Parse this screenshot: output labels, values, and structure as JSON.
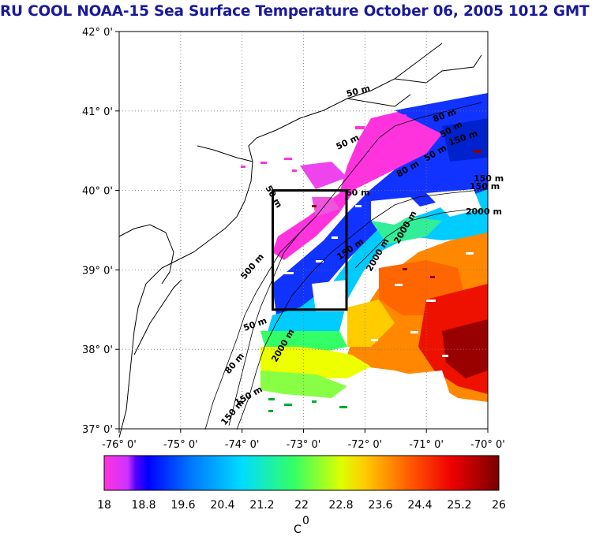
{
  "title": "RU COOL  NOAA-15 Sea Surface Temperature October 06, 2005 1012 GMT",
  "map": {
    "lat_labels": [
      "42° 0'",
      "41° 0'",
      "40° 0'",
      "39° 0'",
      "38° 0'",
      "37° 0'"
    ],
    "lon_labels": [
      "-76° 0'",
      "-75° 0'",
      "-74° 0'",
      "-73° 0'",
      "-72° 0'",
      "-71° 0'",
      "-70° 0'"
    ],
    "isobaths": [
      "50 m",
      "50 m",
      "50 m",
      "60 m",
      "150 m",
      "150 m",
      "50 m",
      "50 m",
      "80 m",
      "80 m",
      "150 m",
      "2000 m",
      "2000 m",
      "500 m",
      "2000 m",
      "50 m",
      "150 m",
      "2000 m",
      "150 m",
      "80 m",
      "150 m"
    ],
    "box": {
      "lon_range": [
        -73.5,
        -72.3
      ],
      "lat_range": [
        38.5,
        40.0
      ]
    }
  },
  "colorbar": {
    "ticks": [
      "18",
      "18.8",
      "19.6",
      "20.4",
      "21.2",
      "22",
      "22.8",
      "23.6",
      "24.4",
      "25.2",
      "26"
    ],
    "unit": "C",
    "unit_superscript": "0",
    "range": [
      18,
      26
    ],
    "colors": [
      "#ff33cc",
      "#0000ff",
      "#00ccff",
      "#33ff66",
      "#ffff00",
      "#ff8800",
      "#ff0000",
      "#880000"
    ]
  }
}
